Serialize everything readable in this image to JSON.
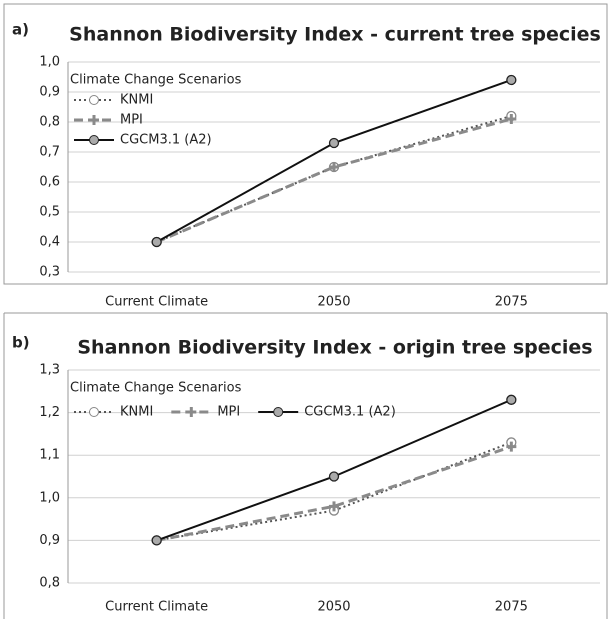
{
  "chart_data": [
    {
      "type": "line",
      "panel_label": "a)",
      "title": "Shannon Biodiversity Index - current tree species",
      "legend_title": "Climate Change Scenarios",
      "legend_layout": "vertical",
      "grid": true,
      "categories": [
        "Current Climate",
        "2050",
        "2075"
      ],
      "ylim": [
        0.3,
        1.0
      ],
      "yticks": [
        {
          "value": 0.3,
          "label": "0,3"
        },
        {
          "value": 0.4,
          "label": "0,4"
        },
        {
          "value": 0.5,
          "label": "0,5"
        },
        {
          "value": 0.6,
          "label": "0,6"
        },
        {
          "value": 0.7,
          "label": "0,7"
        },
        {
          "value": 0.8,
          "label": "0,8"
        },
        {
          "value": 0.9,
          "label": "0,9"
        },
        {
          "value": 1.0,
          "label": "1,0"
        }
      ],
      "series": [
        {
          "name": "KNMI",
          "color": "#555555",
          "line_style": "dotted",
          "marker": "open-circle",
          "values": [
            0.4,
            0.65,
            0.82
          ]
        },
        {
          "name": "MPI",
          "color": "#8a8a8a",
          "line_style": "dashed",
          "marker": "plus",
          "values": [
            0.4,
            0.65,
            0.81
          ]
        },
        {
          "name": "CGCM3.1 (A2)",
          "color": "#111111",
          "line_style": "solid",
          "marker": "filled-circle",
          "values": [
            0.4,
            0.73,
            0.94
          ]
        }
      ]
    },
    {
      "type": "line",
      "panel_label": "b)",
      "title": "Shannon Biodiversity Index - origin tree species",
      "legend_title": "Climate Change Scenarios",
      "legend_layout": "horizontal",
      "grid": true,
      "categories": [
        "Current Climate",
        "2050",
        "2075"
      ],
      "ylim": [
        0.8,
        1.3
      ],
      "yticks": [
        {
          "value": 0.8,
          "label": "0,8"
        },
        {
          "value": 0.9,
          "label": "0,9"
        },
        {
          "value": 1.0,
          "label": "1,0"
        },
        {
          "value": 1.1,
          "label": "1,1"
        },
        {
          "value": 1.2,
          "label": "1,2"
        },
        {
          "value": 1.3,
          "label": "1,3"
        }
      ],
      "series": [
        {
          "name": "KNMI",
          "color": "#555555",
          "line_style": "dotted",
          "marker": "open-circle",
          "values": [
            0.9,
            0.97,
            1.13
          ]
        },
        {
          "name": "MPI",
          "color": "#8a8a8a",
          "line_style": "dashed",
          "marker": "plus",
          "values": [
            0.9,
            0.98,
            1.12
          ]
        },
        {
          "name": "CGCM3.1 (A2)",
          "color": "#111111",
          "line_style": "solid",
          "marker": "filled-circle",
          "values": [
            0.9,
            1.05,
            1.23
          ]
        }
      ]
    }
  ]
}
